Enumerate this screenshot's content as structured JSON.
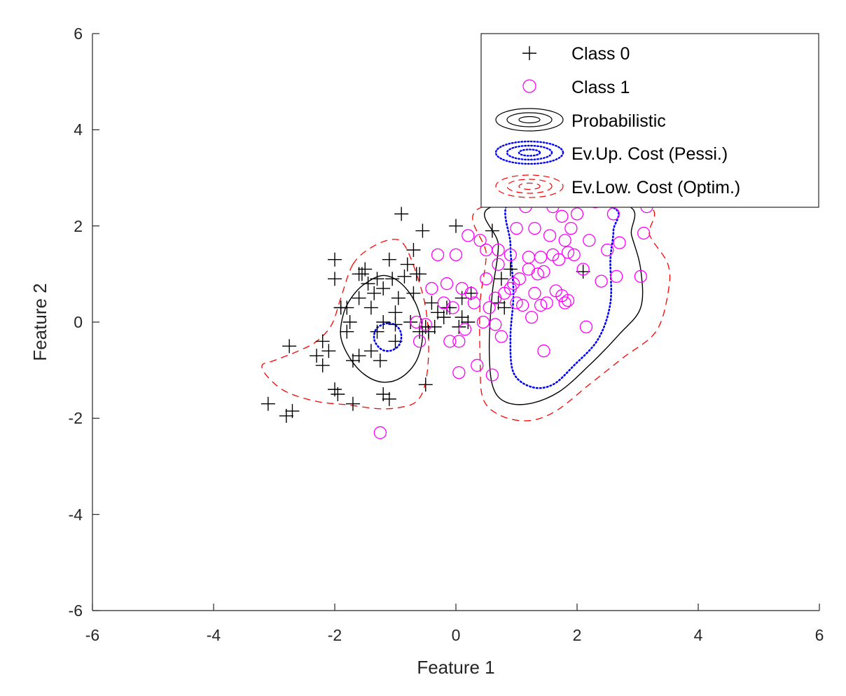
{
  "chart_data": {
    "type": "scatter",
    "xlabel": "Feature 1",
    "ylabel": "Feature 2",
    "xlim": [
      -6,
      6
    ],
    "ylim": [
      -6,
      6
    ],
    "xticks": [
      "-6",
      "-4",
      "-2",
      "0",
      "2",
      "4",
      "6"
    ],
    "yticks": [
      "6",
      "4",
      "2",
      "0",
      "-2",
      "-4",
      "-6"
    ],
    "legend_position": "top-right",
    "colors": {
      "class0": "#000000",
      "class1": "#ff00ff",
      "probabilistic": "#000000",
      "pessimistic": "#0000ff",
      "optimistic": "#ff0000"
    },
    "series": [
      {
        "name": "Class 0",
        "marker": "plus",
        "points": [
          [
            -3.1,
            -1.7
          ],
          [
            -2.8,
            -1.95
          ],
          [
            -2.7,
            -1.85
          ],
          [
            -2.75,
            -0.5
          ],
          [
            -2.3,
            -0.7
          ],
          [
            -2.2,
            -0.9
          ],
          [
            -2.2,
            -0.4
          ],
          [
            -2.1,
            -0.6
          ],
          [
            -2.0,
            -1.4
          ],
          [
            -1.95,
            -1.5
          ],
          [
            -1.7,
            -1.7
          ],
          [
            -2.0,
            1.3
          ],
          [
            -2.0,
            0.9
          ],
          [
            -1.9,
            0.3
          ],
          [
            -1.8,
            -0.2
          ],
          [
            -1.8,
            0.3
          ],
          [
            -1.75,
            0.0
          ],
          [
            -1.7,
            -0.8
          ],
          [
            -1.6,
            0.5
          ],
          [
            -1.6,
            -0.7
          ],
          [
            -1.55,
            1.0
          ],
          [
            -1.5,
            1.1
          ],
          [
            -1.45,
            0.8
          ],
          [
            -1.4,
            0.3
          ],
          [
            -1.4,
            -0.6
          ],
          [
            -1.35,
            0.6
          ],
          [
            -1.3,
            -0.2
          ],
          [
            -1.3,
            0.9
          ],
          [
            -1.25,
            -0.8
          ],
          [
            -1.2,
            0.7
          ],
          [
            -1.2,
            -1.5
          ],
          [
            -1.1,
            -1.6
          ],
          [
            -1.1,
            1.3
          ],
          [
            -1.05,
            0.9
          ],
          [
            -1.0,
            0.2
          ],
          [
            -1.0,
            -0.4
          ],
          [
            -0.95,
            0.5
          ],
          [
            -0.9,
            2.25
          ],
          [
            -0.85,
            0.95
          ],
          [
            -0.8,
            1.2
          ],
          [
            -0.75,
            0.0
          ],
          [
            -0.7,
            1.5
          ],
          [
            -0.7,
            0.6
          ],
          [
            -0.6,
            1.0
          ],
          [
            -0.6,
            -0.2
          ],
          [
            -0.55,
            1.9
          ],
          [
            -0.5,
            -0.1
          ],
          [
            -0.5,
            -1.3
          ],
          [
            -0.45,
            -0.2
          ],
          [
            -0.4,
            0.4
          ],
          [
            -0.35,
            -0.1
          ],
          [
            -0.3,
            0.2
          ],
          [
            -0.2,
            0.1
          ],
          [
            -0.1,
            0.3
          ],
          [
            0.0,
            2.0
          ],
          [
            0.05,
            -0.1
          ],
          [
            0.1,
            0.5
          ],
          [
            0.2,
            0.0
          ],
          [
            0.25,
            0.6
          ],
          [
            0.6,
            1.9
          ],
          [
            0.7,
            0.4
          ],
          [
            0.75,
            0.9
          ],
          [
            0.8,
            0.3
          ],
          [
            0.9,
            1.1
          ],
          [
            2.1,
            1.05
          ],
          [
            -1.2,
            0.0
          ],
          [
            -1.6,
            1.0
          ],
          [
            -0.65,
            1.0
          ],
          [
            -1.9,
            0.3
          ],
          [
            -1.0,
            -0.05
          ],
          [
            0.1,
            0.1
          ],
          [
            -0.15,
            0.3
          ]
        ]
      },
      {
        "name": "Class 1",
        "marker": "circle",
        "points": [
          [
            -1.25,
            -2.3
          ],
          [
            -0.65,
            0.0
          ],
          [
            -0.6,
            -0.4
          ],
          [
            -0.5,
            -0.05
          ],
          [
            -0.4,
            0.7
          ],
          [
            -0.3,
            1.4
          ],
          [
            -0.2,
            0.4
          ],
          [
            -0.15,
            0.8
          ],
          [
            -0.1,
            -0.4
          ],
          [
            -0.05,
            0.3
          ],
          [
            0.0,
            1.4
          ],
          [
            0.05,
            -0.4
          ],
          [
            0.05,
            -1.05
          ],
          [
            0.1,
            0.7
          ],
          [
            0.15,
            -0.15
          ],
          [
            0.2,
            1.8
          ],
          [
            0.25,
            0.6
          ],
          [
            0.3,
            0.4
          ],
          [
            0.35,
            -0.9
          ],
          [
            0.4,
            1.7
          ],
          [
            0.45,
            0.0
          ],
          [
            0.5,
            0.9
          ],
          [
            0.5,
            1.5
          ],
          [
            0.55,
            0.3
          ],
          [
            0.6,
            -1.1
          ],
          [
            0.65,
            0.5
          ],
          [
            0.65,
            -0.05
          ],
          [
            0.7,
            1.2
          ],
          [
            0.7,
            1.5
          ],
          [
            0.75,
            -0.3
          ],
          [
            0.8,
            0.6
          ],
          [
            0.9,
            1.4
          ],
          [
            0.95,
            0.8
          ],
          [
            1.0,
            1.95
          ],
          [
            1.05,
            0.9
          ],
          [
            1.1,
            0.35
          ],
          [
            1.15,
            2.4
          ],
          [
            1.2,
            1.35
          ],
          [
            1.25,
            0.1
          ],
          [
            1.3,
            0.6
          ],
          [
            1.3,
            1.95
          ],
          [
            1.35,
            1.0
          ],
          [
            1.4,
            1.35
          ],
          [
            1.45,
            -0.6
          ],
          [
            1.5,
            0.4
          ],
          [
            1.55,
            1.8
          ],
          [
            1.6,
            2.4
          ],
          [
            1.65,
            0.65
          ],
          [
            1.7,
            1.3
          ],
          [
            1.75,
            0.55
          ],
          [
            1.75,
            2.2
          ],
          [
            1.8,
            1.7
          ],
          [
            1.85,
            0.45
          ],
          [
            1.85,
            1.45
          ],
          [
            1.9,
            1.95
          ],
          [
            1.95,
            1.4
          ],
          [
            2.0,
            2.25
          ],
          [
            2.1,
            1.1
          ],
          [
            2.15,
            -0.1
          ],
          [
            2.2,
            1.7
          ],
          [
            2.3,
            2.5
          ],
          [
            2.4,
            0.85
          ],
          [
            2.5,
            1.5
          ],
          [
            2.6,
            2.25
          ],
          [
            2.65,
            0.95
          ],
          [
            2.7,
            1.65
          ],
          [
            3.05,
            0.95
          ],
          [
            3.1,
            1.85
          ],
          [
            3.15,
            2.4
          ],
          [
            1.45,
            1.05
          ],
          [
            1.6,
            1.4
          ],
          [
            1.2,
            1.1
          ],
          [
            0.9,
            0.7
          ],
          [
            1.0,
            0.4
          ],
          [
            1.8,
            0.4
          ],
          [
            1.4,
            0.35
          ]
        ]
      }
    ],
    "legend": [
      {
        "label": "Class 0",
        "type": "plus"
      },
      {
        "label": "Class 1",
        "type": "circle"
      },
      {
        "label": "Probabilistic",
        "type": "contour-solid"
      },
      {
        "label": "Ev.Up. Cost (Pessi.)",
        "type": "contour-dotted"
      },
      {
        "label": "Ev.Low. Cost (Optim.)",
        "type": "contour-dashed"
      }
    ],
    "contours": [
      {
        "name": "Probabilistic",
        "style": "solid",
        "regions": [
          [
            [
              -1.5,
              0.8
            ],
            [
              -1.2,
              0.97
            ],
            [
              -0.9,
              0.8
            ],
            [
              -0.65,
              0.35
            ],
            [
              -0.55,
              -0.25
            ],
            [
              -0.65,
              -0.8
            ],
            [
              -0.9,
              -1.15
            ],
            [
              -1.2,
              -1.25
            ],
            [
              -1.5,
              -1.1
            ],
            [
              -1.75,
              -0.75
            ],
            [
              -1.9,
              -0.3
            ],
            [
              -1.85,
              0.2
            ],
            [
              -1.7,
              0.55
            ]
          ],
          [
            [
              0.6,
              2.4
            ],
            [
              0.7,
              1.6
            ],
            [
              0.6,
              0.6
            ],
            [
              0.55,
              -0.5
            ],
            [
              0.6,
              -1.3
            ],
            [
              0.8,
              -1.65
            ],
            [
              1.2,
              -1.7
            ],
            [
              1.7,
              -1.45
            ],
            [
              2.2,
              -0.9
            ],
            [
              2.7,
              -0.25
            ],
            [
              3.05,
              0.3
            ],
            [
              3.05,
              1.1
            ],
            [
              2.9,
              1.8
            ],
            [
              2.75,
              2.45
            ]
          ]
        ]
      },
      {
        "name": "Ev.Up. Cost (Pessi.)",
        "style": "dotted",
        "regions": [
          [
            [
              -1.1,
              -0.02
            ],
            [
              -0.95,
              -0.12
            ],
            [
              -0.9,
              -0.3
            ],
            [
              -0.95,
              -0.5
            ],
            [
              -1.1,
              -0.6
            ],
            [
              -1.25,
              -0.55
            ],
            [
              -1.35,
              -0.35
            ],
            [
              -1.3,
              -0.12
            ]
          ],
          [
            [
              0.95,
              2.55
            ],
            [
              0.9,
              1.6
            ],
            [
              0.95,
              0.6
            ],
            [
              0.9,
              -0.3
            ],
            [
              0.95,
              -1.05
            ],
            [
              1.25,
              -1.35
            ],
            [
              1.6,
              -1.3
            ],
            [
              1.95,
              -0.9
            ],
            [
              2.35,
              -0.35
            ],
            [
              2.55,
              0.4
            ],
            [
              2.55,
              1.3
            ],
            [
              2.6,
              1.9
            ],
            [
              2.55,
              2.4
            ]
          ]
        ]
      },
      {
        "name": "Ev.Low. Cost (Optim.)",
        "style": "dashed",
        "regions": [
          [
            [
              -1.7,
              1.2
            ],
            [
              -1.4,
              1.55
            ],
            [
              -1.05,
              1.72
            ],
            [
              -0.85,
              1.6
            ],
            [
              -0.65,
              1.0
            ],
            [
              -0.5,
              0.3
            ],
            [
              -0.45,
              -0.5
            ],
            [
              -0.5,
              -1.25
            ],
            [
              -0.65,
              -1.65
            ],
            [
              -0.95,
              -1.78
            ],
            [
              -1.3,
              -1.8
            ],
            [
              -1.8,
              -1.72
            ],
            [
              -2.3,
              -1.65
            ],
            [
              -2.8,
              -1.45
            ],
            [
              -3.1,
              -1.15
            ],
            [
              -3.2,
              -0.9
            ],
            [
              -3.0,
              -0.8
            ],
            [
              -2.6,
              -0.6
            ],
            [
              -2.3,
              -0.4
            ],
            [
              -2.05,
              -0.05
            ],
            [
              -1.9,
              0.5
            ]
          ],
          [
            [
              0.45,
              2.4
            ],
            [
              0.5,
              1.4
            ],
            [
              0.4,
              0.4
            ],
            [
              0.4,
              -0.8
            ],
            [
              0.45,
              -1.6
            ],
            [
              0.75,
              -1.95
            ],
            [
              1.2,
              -2.05
            ],
            [
              1.65,
              -1.85
            ],
            [
              2.2,
              -1.3
            ],
            [
              2.75,
              -0.75
            ],
            [
              3.3,
              -0.2
            ],
            [
              3.5,
              0.6
            ],
            [
              3.5,
              1.2
            ],
            [
              3.2,
              1.8
            ],
            [
              3.05,
              2.45
            ]
          ]
        ]
      }
    ]
  }
}
